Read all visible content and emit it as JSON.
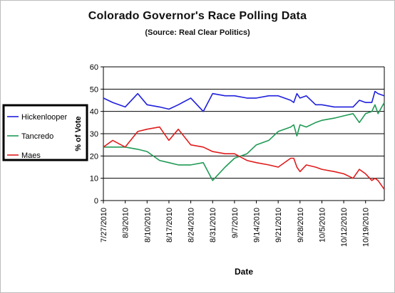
{
  "chart_data": {
    "type": "line",
    "title": "Colorado Governor's Race Polling Data",
    "subtitle": "(Source: Real Clear Politics)",
    "xlabel": "Date",
    "ylabel": "% of Vote",
    "ylim": [
      0,
      60
    ],
    "yticks": [
      0,
      10,
      20,
      30,
      40,
      50,
      60
    ],
    "x_tick_labels": [
      "7/27/2010",
      "8/3/2010",
      "8/10/2010",
      "8/17/2010",
      "8/24/2010",
      "8/31/2010",
      "9/7/2010",
      "9/14/2010",
      "9/21/2010",
      "9/28/2010",
      "10/5/2010",
      "10/12/2010",
      "10/19/2010"
    ],
    "x": [
      "7/27/2010",
      "7/30/2010",
      "8/3/2010",
      "8/7/2010",
      "8/10/2010",
      "8/14/2010",
      "8/17/2010",
      "8/20/2010",
      "8/24/2010",
      "8/28/2010",
      "8/31/2010",
      "9/4/2010",
      "9/7/2010",
      "9/11/2010",
      "9/14/2010",
      "9/18/2010",
      "9/21/2010",
      "9/25/2010",
      "9/26/2010",
      "9/27/2010",
      "9/28/2010",
      "9/30/2010",
      "10/3/2010",
      "10/5/2010",
      "10/9/2010",
      "10/12/2010",
      "10/15/2010",
      "10/17/2010",
      "10/19/2010",
      "10/21/2010",
      "10/22/2010",
      "10/23/2010",
      "10/25/2010"
    ],
    "series": [
      {
        "name": "Hickenlooper",
        "color": "#1f1fdc",
        "values": [
          46,
          44,
          42,
          48,
          43,
          42,
          41,
          43,
          46,
          40,
          48,
          47,
          47,
          46,
          46,
          47,
          47,
          45,
          44,
          48,
          46,
          47,
          43,
          43,
          42,
          42,
          42,
          45,
          44,
          44,
          49,
          48,
          47
        ]
      },
      {
        "name": "Tancredo",
        "color": "#1f9a55",
        "values": [
          24,
          24,
          24,
          23,
          22,
          18,
          17,
          16,
          16,
          17,
          9,
          15,
          19,
          21,
          25,
          27,
          31,
          33,
          34,
          29,
          34,
          33,
          35,
          36,
          37,
          38,
          39,
          35,
          39,
          40,
          43,
          39,
          44
        ]
      },
      {
        "name": "Maes",
        "color": "#e01c1c",
        "values": [
          24,
          27,
          24,
          31,
          32,
          33,
          27,
          32,
          25,
          24,
          22,
          21,
          21,
          18,
          17,
          16,
          15,
          19,
          19,
          15,
          13,
          16,
          15,
          14,
          13,
          12,
          10,
          14,
          12,
          9,
          10,
          9,
          5
        ]
      }
    ],
    "legend_position": "left",
    "grid": true
  }
}
